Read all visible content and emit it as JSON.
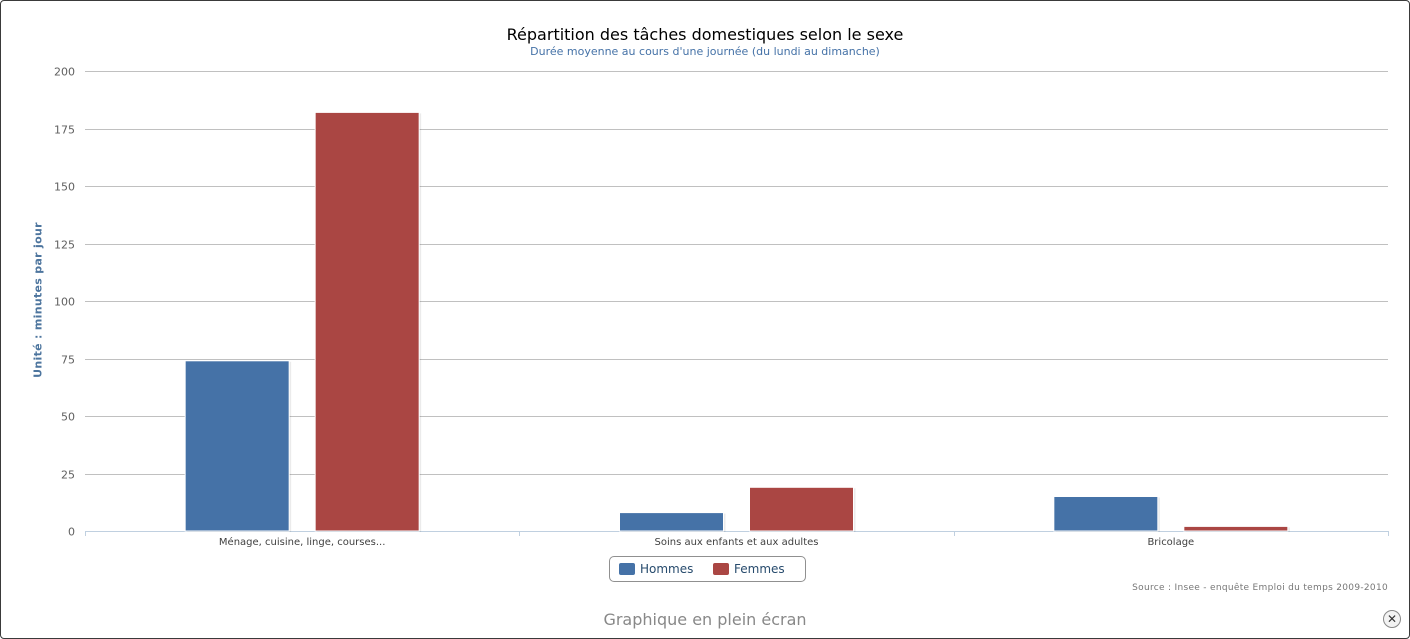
{
  "chart_data": {
    "type": "bar",
    "title": "Répartition des tâches domestiques selon le sexe",
    "subtitle": "Durée moyenne au cours d'une journée (du lundi au dimanche)",
    "ylabel": "Unité : minutes par jour",
    "xlabel": "",
    "categories": [
      "Ménage, cuisine, linge, courses...",
      "Soins aux enfants et aux adultes",
      "Bricolage"
    ],
    "series": [
      {
        "name": "Hommes",
        "color": "#4572a7",
        "values": [
          74,
          8,
          15
        ]
      },
      {
        "name": "Femmes",
        "color": "#aa4643",
        "values": [
          182,
          19,
          2
        ]
      }
    ],
    "ylim": [
      0,
      200
    ],
    "yticks": [
      0,
      25,
      50,
      75,
      100,
      125,
      150,
      175,
      200
    ],
    "grid": true,
    "legend_position": "bottom-center"
  },
  "source_text": "Source : Insee - enquête Emploi du temps 2009-2010",
  "fullscreen_label": "Graphique en plein écran",
  "close_icon": "close-icon"
}
